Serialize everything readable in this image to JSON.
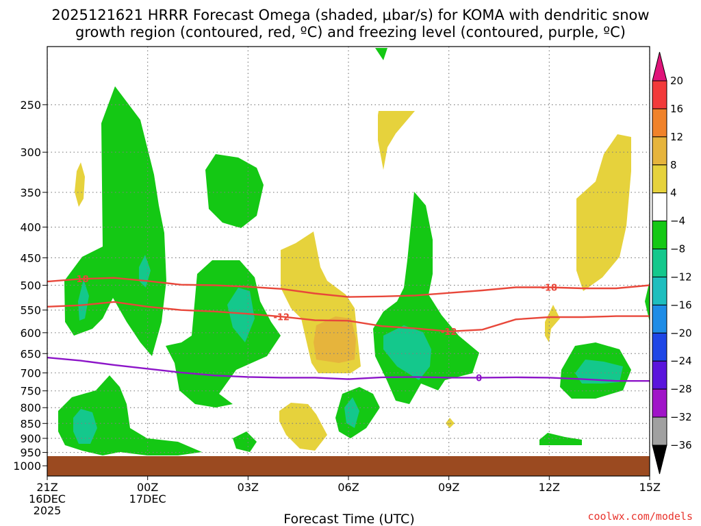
{
  "title_lines": [
    "2025121621 HRRR Forecast Omega (shaded, μbar/s) for KOMA with dendritic snow",
    "growth region (contoured, red, ºC) and freezing level (contoured, purple, ºC)"
  ],
  "watermark": "coolwx.com/models",
  "colors": {
    "ground": "#9b4a20",
    "temp_contour": "#e8473a",
    "freezing_contour": "#8c14c8",
    "grid": "#808080"
  },
  "chart_data": {
    "type": "heatmap",
    "xlabel": "Forecast Time (UTC)",
    "ylabel": "",
    "ylim": [
      1040,
      200
    ],
    "yscale": "log",
    "grid": "dotted, both axes",
    "x_ticks": [
      {
        "hour": 0,
        "lines": [
          "21Z",
          "16DEC",
          "2025"
        ]
      },
      {
        "hour": 3,
        "lines": [
          "00Z",
          "17DEC"
        ]
      },
      {
        "hour": 6,
        "lines": [
          "03Z"
        ]
      },
      {
        "hour": 9,
        "lines": [
          "06Z"
        ]
      },
      {
        "hour": 12,
        "lines": [
          "09Z"
        ]
      },
      {
        "hour": 15,
        "lines": [
          "12Z"
        ]
      },
      {
        "hour": 18,
        "lines": [
          "15Z"
        ]
      }
    ],
    "y_ticks": [
      250,
      300,
      350,
      400,
      450,
      500,
      550,
      600,
      650,
      700,
      750,
      800,
      850,
      900,
      950,
      1000
    ],
    "colorbar": {
      "label_levels": [
        "20",
        "16",
        "12",
        "8",
        "4",
        "−4",
        "−8",
        "−12",
        "−16",
        "−20",
        "−24",
        "−28",
        "−32",
        "−36"
      ],
      "bands": [
        {
          "lo": 16,
          "hi": 20,
          "color": "#f23a3a"
        },
        {
          "lo": 12,
          "hi": 16,
          "color": "#f0822a"
        },
        {
          "lo": 8,
          "hi": 12,
          "color": "#e6b43c"
        },
        {
          "lo": 4,
          "hi": 8,
          "color": "#e6d23c"
        },
        {
          "lo": -4,
          "hi": 4,
          "color": "#ffffff"
        },
        {
          "lo": -8,
          "hi": -4,
          "color": "#14c814"
        },
        {
          "lo": -12,
          "hi": -8,
          "color": "#14c88c"
        },
        {
          "lo": -16,
          "hi": -12,
          "color": "#1ebebe"
        },
        {
          "lo": -20,
          "hi": -16,
          "color": "#1e8ce6"
        },
        {
          "lo": -24,
          "hi": -20,
          "color": "#1e46e6"
        },
        {
          "lo": -28,
          "hi": -24,
          "color": "#5a14dc"
        },
        {
          "lo": -32,
          "hi": -28,
          "color": "#a014c8"
        },
        {
          "lo": -36,
          "hi": -32,
          "color": "#a0a0a0"
        }
      ],
      "top_arrow_color": "#e0147a",
      "bottom_arrow_color": "#000000"
    },
    "contours": [
      {
        "label": "-18",
        "color": "#e8473a",
        "points": [
          [
            0,
            493
          ],
          [
            1,
            488
          ],
          [
            2,
            486
          ],
          [
            3,
            492
          ],
          [
            4,
            499
          ],
          [
            5,
            500
          ],
          [
            6,
            503
          ],
          [
            7,
            507
          ],
          [
            8,
            516
          ],
          [
            9,
            523
          ],
          [
            10,
            522
          ],
          [
            11,
            520
          ],
          [
            12,
            515
          ],
          [
            13,
            510
          ],
          [
            14,
            504
          ],
          [
            15,
            504
          ],
          [
            16,
            506
          ],
          [
            17,
            506
          ],
          [
            18,
            500
          ]
        ]
      },
      {
        "label": "-12",
        "color": "#e8473a",
        "points": [
          [
            0,
            543
          ],
          [
            1,
            540
          ],
          [
            2,
            533
          ],
          [
            3,
            543
          ],
          [
            4,
            550
          ],
          [
            5,
            553
          ],
          [
            6,
            558
          ],
          [
            7,
            564
          ],
          [
            8,
            572
          ],
          [
            9,
            573
          ],
          [
            10,
            585
          ],
          [
            11,
            590
          ],
          [
            12,
            597
          ],
          [
            13,
            593
          ],
          [
            14,
            570
          ],
          [
            15,
            565
          ],
          [
            16,
            565
          ],
          [
            17,
            563
          ],
          [
            18,
            563
          ]
        ]
      },
      {
        "label": "0",
        "color": "#8c14c8",
        "points": [
          [
            0,
            660
          ],
          [
            1,
            668
          ],
          [
            2,
            679
          ],
          [
            3,
            689
          ],
          [
            4,
            699
          ],
          [
            5,
            707
          ],
          [
            6,
            711
          ],
          [
            7,
            713
          ],
          [
            8,
            713
          ],
          [
            9,
            717
          ],
          [
            10,
            712
          ],
          [
            11,
            711
          ],
          [
            12,
            713
          ],
          [
            13,
            713
          ],
          [
            14,
            712
          ],
          [
            15,
            713
          ],
          [
            16,
            717
          ],
          [
            17,
            722
          ],
          [
            18,
            722
          ]
        ]
      }
    ],
    "regions": [
      {
        "omega_band": "-8 to -4",
        "points": [
          [
            5.2,
            1
          ],
          [
            5.8,
            5
          ],
          [
            6.8,
            2
          ],
          [
            7.6,
            3
          ],
          [
            8.7,
            4
          ],
          [
            10.1,
            9
          ],
          [
            11.0,
            6
          ],
          [
            12.4,
            7
          ],
          [
            15.0,
            8
          ],
          [
            17.0,
            10
          ],
          [
            18.0,
            11
          ]
        ]
      },
      {
        "omega_band": "4 to 8",
        "points": [
          [
            0.9,
            12
          ],
          [
            9.6,
            13
          ],
          [
            10.4,
            14
          ],
          [
            17.2,
            15
          ],
          [
            7.6,
            16
          ],
          [
            7.2,
            17
          ],
          [
            15.0,
            18
          ],
          [
            17.9,
            19
          ]
        ]
      },
      {
        "omega_band": "8 to 12",
        "points": [
          [
            8.0,
            20
          ]
        ]
      },
      {
        "omega_band": "-12 to -8",
        "points": [
          [
            1.0,
            21
          ],
          [
            2.8,
            22
          ],
          [
            6.0,
            23
          ],
          [
            10.8,
            24
          ],
          [
            16.1,
            25
          ],
          [
            1.2,
            26
          ],
          [
            9.1,
            27
          ]
        ]
      }
    ]
  }
}
